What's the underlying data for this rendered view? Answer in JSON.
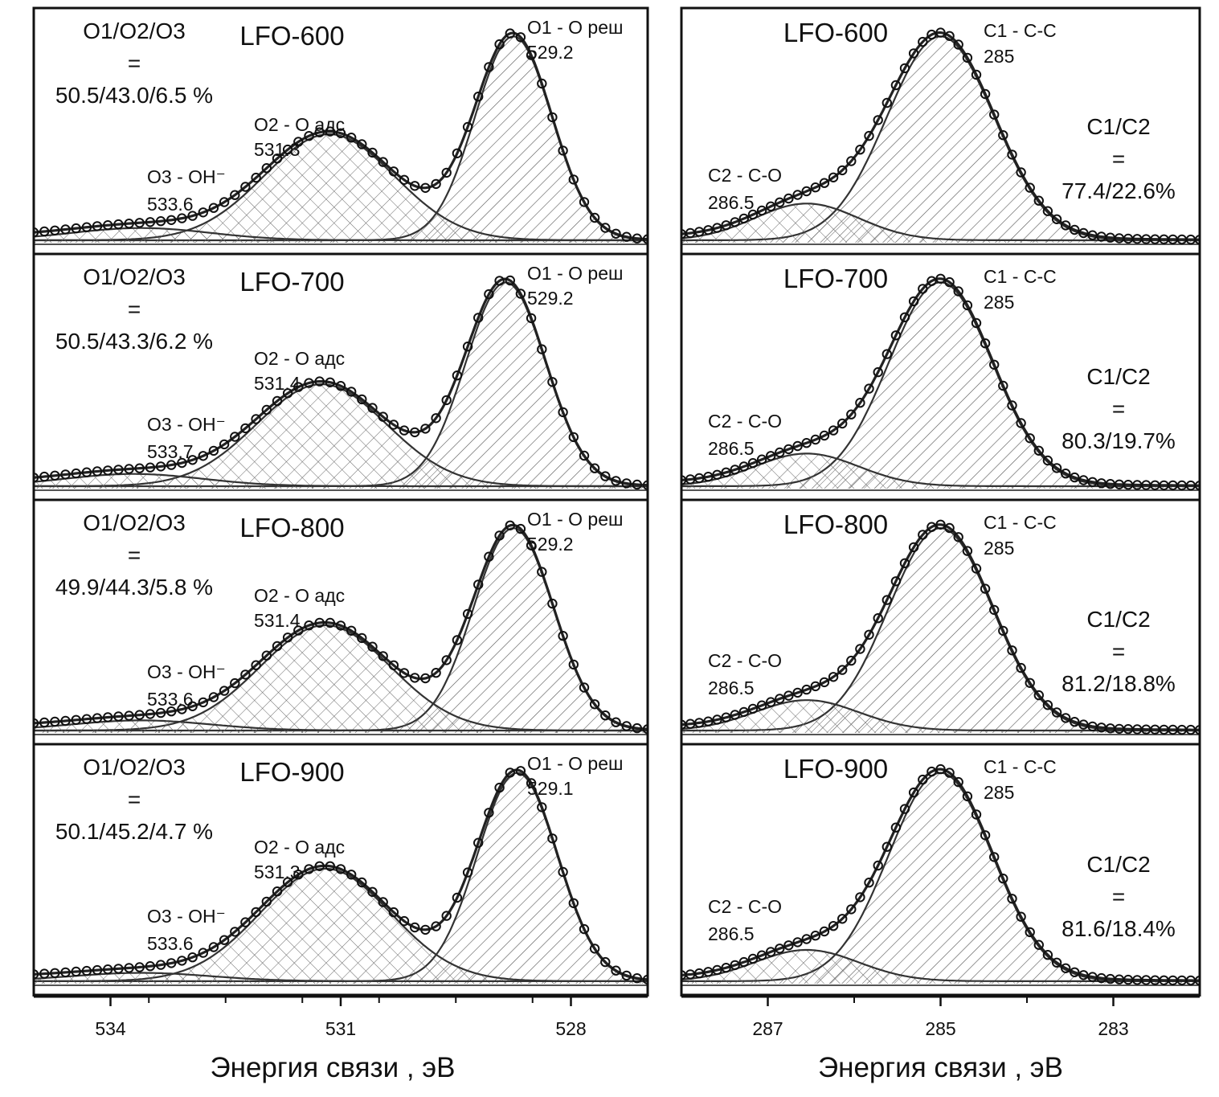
{
  "figure": {
    "colors": {
      "frame": "#111111",
      "fit": "#222222",
      "component": "#333333",
      "marker": "#111111",
      "hatch": "#555555"
    }
  },
  "chart_data": [
    {
      "type": "line",
      "spectrum": "O1s",
      "xlabel": "Энергия связи , эВ",
      "xlim": [
        535.0,
        527.0
      ],
      "ticks": [
        534,
        531,
        528
      ],
      "ticks_minor": [
        533.5,
        532.5,
        531.5,
        530.5,
        529.5,
        528.5
      ],
      "panels": [
        {
          "sample": "LFO-600",
          "ratio_lines": [
            "O1/O2/O3",
            "=",
            "50.5/43.0/6.5 %"
          ],
          "ymax": 1.08,
          "components": [
            {
              "id": "O1",
              "label": "O1 - O реш",
              "position": "529.2",
              "center": 528.75,
              "width": 0.5,
              "height": 1.0,
              "hatch": "diag"
            },
            {
              "id": "O2",
              "label": "O2 - O адс",
              "position": "531.3",
              "center": 531.15,
              "width": 0.85,
              "height": 0.52,
              "hatch": "cross"
            },
            {
              "id": "O3",
              "label": "O3 - OH⁻",
              "position": "533.6",
              "center": 533.6,
              "width": 0.9,
              "height": 0.06,
              "hatch": "cross"
            }
          ]
        },
        {
          "sample": "LFO-700",
          "ratio_lines": [
            "O1/O2/O3",
            "=",
            "50.5/43.3/6.2 %"
          ],
          "ymax": 1.08,
          "components": [
            {
              "id": "O1",
              "label": "O1 - O реш",
              "position": "529.2",
              "center": 528.85,
              "width": 0.52,
              "height": 1.0,
              "hatch": "diag"
            },
            {
              "id": "O2",
              "label": "O2 - O адс",
              "position": "531.4",
              "center": 531.25,
              "width": 0.85,
              "height": 0.5,
              "hatch": "cross"
            },
            {
              "id": "O3",
              "label": "O3 - OH⁻",
              "position": "533.7",
              "center": 533.7,
              "width": 0.9,
              "height": 0.06,
              "hatch": "cross"
            }
          ]
        },
        {
          "sample": "LFO-800",
          "ratio_lines": [
            "O1/O2/O3",
            "=",
            "49.9/44.3/5.8 %"
          ],
          "ymax": 1.08,
          "components": [
            {
              "id": "O1",
              "label": "O1 - O реш",
              "position": "529.2",
              "center": 528.75,
              "width": 0.52,
              "height": 1.0,
              "hatch": "diag"
            },
            {
              "id": "O2",
              "label": "O2 - O адс",
              "position": "531.4",
              "center": 531.2,
              "width": 0.85,
              "height": 0.52,
              "hatch": "cross"
            },
            {
              "id": "O3",
              "label": "O3 - OH⁻",
              "position": "533.6",
              "center": 533.6,
              "width": 0.9,
              "height": 0.05,
              "hatch": "cross"
            }
          ]
        },
        {
          "sample": "LFO-900",
          "ratio_lines": [
            "O1/O2/O3",
            "=",
            "50.1/45.2/4.7 %"
          ],
          "ymax": 1.08,
          "components": [
            {
              "id": "O1",
              "label": "O1 - O реш",
              "position": "529.1",
              "center": 528.7,
              "width": 0.52,
              "height": 1.0,
              "hatch": "diag"
            },
            {
              "id": "O2",
              "label": "O2 - O адс",
              "position": "531.3",
              "center": 531.2,
              "width": 0.85,
              "height": 0.54,
              "hatch": "cross"
            },
            {
              "id": "O3",
              "label": "O3 - OH⁻",
              "position": "533.6",
              "center": 533.6,
              "width": 0.9,
              "height": 0.04,
              "hatch": "cross"
            }
          ]
        }
      ]
    },
    {
      "type": "line",
      "spectrum": "C1s",
      "xlabel": "Энергия связи , эВ",
      "xlim": [
        288.0,
        282.0
      ],
      "ticks": [
        287,
        285,
        283
      ],
      "ticks_minor": [
        286,
        284
      ],
      "panels": [
        {
          "sample": "LFO-600",
          "ratio_lines": [
            "C1/C2",
            "=",
            "77.4/22.6%"
          ],
          "ymax": 1.08,
          "components": [
            {
              "id": "C1",
              "label": "C1 - C-C",
              "position": "285",
              "center": 285.0,
              "width": 0.62,
              "height": 1.0,
              "hatch": "diag"
            },
            {
              "id": "C2",
              "label": "C2 - C-O",
              "position": "286.5",
              "center": 286.55,
              "width": 0.6,
              "height": 0.18,
              "hatch": "cross"
            }
          ]
        },
        {
          "sample": "LFO-700",
          "ratio_lines": [
            "C1/C2",
            "=",
            "80.3/19.7%"
          ],
          "ymax": 1.08,
          "components": [
            {
              "id": "C1",
              "label": "C1 - C-C",
              "position": "285",
              "center": 285.0,
              "width": 0.6,
              "height": 1.0,
              "hatch": "diag"
            },
            {
              "id": "C2",
              "label": "C2 - C-O",
              "position": "286.5",
              "center": 286.55,
              "width": 0.6,
              "height": 0.16,
              "hatch": "cross"
            }
          ]
        },
        {
          "sample": "LFO-800",
          "ratio_lines": [
            "C1/C2",
            "=",
            "81.2/18.8%"
          ],
          "ymax": 1.08,
          "components": [
            {
              "id": "C1",
              "label": "C1 - C-C",
              "position": "285",
              "center": 285.0,
              "width": 0.6,
              "height": 1.0,
              "hatch": "diag"
            },
            {
              "id": "C2",
              "label": "C2 - C-O",
              "position": "286.5",
              "center": 286.55,
              "width": 0.6,
              "height": 0.15,
              "hatch": "cross"
            }
          ]
        },
        {
          "sample": "LFO-900",
          "ratio_lines": [
            "C1/C2",
            "=",
            "81.6/18.4%"
          ],
          "ymax": 1.08,
          "components": [
            {
              "id": "C1",
              "label": "C1 - C-C",
              "position": "285",
              "center": 285.0,
              "width": 0.6,
              "height": 1.0,
              "hatch": "diag"
            },
            {
              "id": "C2",
              "label": "C2 - C-O",
              "position": "286.5",
              "center": 286.55,
              "width": 0.6,
              "height": 0.15,
              "hatch": "cross"
            }
          ]
        }
      ]
    }
  ]
}
